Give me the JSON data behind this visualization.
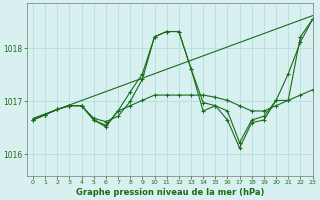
{
  "title": "Graphe pression niveau de la mer (hPa)",
  "background_color": "#d8f0f0",
  "grid_color": "#aadddd",
  "line_color": "#1a6b1a",
  "xlim": [
    -0.5,
    23
  ],
  "ylim": [
    1015.6,
    1018.85
  ],
  "yticks": [
    1016,
    1017,
    1018
  ],
  "xticks": [
    0,
    1,
    2,
    3,
    4,
    5,
    6,
    7,
    8,
    9,
    10,
    11,
    12,
    13,
    14,
    15,
    16,
    17,
    18,
    19,
    20,
    21,
    22,
    23
  ],
  "series": [
    {
      "x": [
        0,
        1,
        2,
        3,
        4,
        5,
        6,
        7,
        8,
        9,
        10,
        11,
        12,
        13,
        14,
        15,
        16,
        17,
        18,
        19,
        20,
        21,
        22,
        23
      ],
      "y": [
        1016.65,
        1016.75,
        1016.85,
        1016.92,
        1016.92,
        1016.65,
        1016.52,
        1016.82,
        1017.18,
        1017.52,
        1018.22,
        1018.32,
        1018.32,
        1017.62,
        1016.98,
        1016.92,
        1016.65,
        1016.12,
        1016.6,
        1016.65,
        1017.02,
        1017.02,
        1018.22,
        1018.55
      ],
      "marker": "+"
    },
    {
      "x": [
        0,
        1,
        2,
        3,
        4,
        5,
        6,
        7,
        8,
        9,
        10,
        11,
        12,
        13,
        14,
        15,
        16,
        17,
        18,
        19,
        20,
        21,
        22,
        23
      ],
      "y": [
        1016.65,
        1016.75,
        1016.85,
        1016.92,
        1016.92,
        1016.65,
        1016.55,
        1016.82,
        1016.92,
        1017.02,
        1017.12,
        1017.12,
        1017.12,
        1017.12,
        1017.12,
        1017.08,
        1017.02,
        1016.92,
        1016.82,
        1016.82,
        1016.92,
        1017.02,
        1017.12,
        1017.22
      ],
      "marker": "+"
    },
    {
      "x": [
        0,
        23
      ],
      "y": [
        1016.68,
        1018.62
      ],
      "marker": null
    },
    {
      "x": [
        0,
        1,
        2,
        3,
        4,
        5,
        6,
        7,
        8,
        9,
        10,
        11,
        12,
        13,
        14,
        15,
        16,
        17,
        18,
        19,
        20,
        21,
        22,
        23
      ],
      "y": [
        1016.65,
        1016.75,
        1016.85,
        1016.92,
        1016.92,
        1016.68,
        1016.62,
        1016.72,
        1017.0,
        1017.42,
        1018.22,
        1018.32,
        1018.32,
        1017.62,
        1016.82,
        1016.92,
        1016.82,
        1016.22,
        1016.65,
        1016.72,
        1017.02,
        1017.52,
        1018.12,
        1018.55
      ],
      "marker": "+"
    }
  ]
}
